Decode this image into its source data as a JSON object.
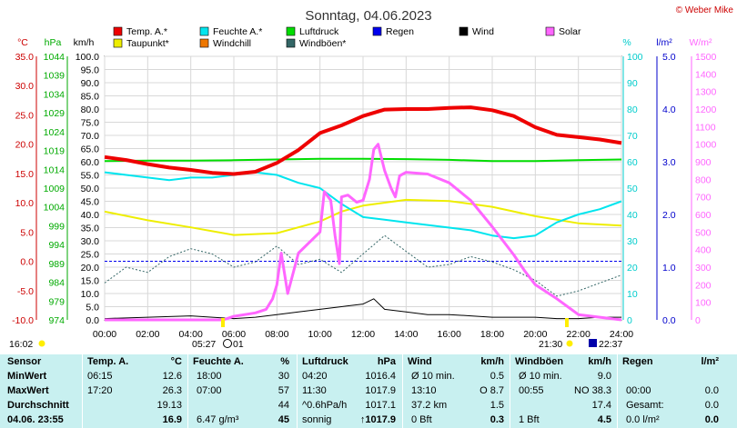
{
  "title": "Sonntag, 04.06.2023",
  "credit": "© Weber Mike",
  "colors": {
    "temp": "#ee0000",
    "feuchte": "#00e5ee",
    "luftdruck": "#00dd00",
    "regen": "#0000ee",
    "wind": "#000000",
    "solar": "#ff66ff",
    "taupunkt": "#eeee00",
    "windchill": "#ee7700",
    "windboeen": "#336666",
    "table_bg": "#c8f0f0"
  },
  "legend": [
    {
      "label": "Temp. A.*",
      "color": "#ee0000"
    },
    {
      "label": "Feuchte A.*",
      "color": "#00e5ee"
    },
    {
      "label": "Luftdruck",
      "color": "#00dd00"
    },
    {
      "label": "Regen",
      "color": "#0000ee"
    },
    {
      "label": "Wind",
      "color": "#000000"
    },
    {
      "label": "Solar",
      "color": "#ff66ff"
    },
    {
      "label": "Taupunkt*",
      "color": "#eeee00"
    },
    {
      "label": "Windchill",
      "color": "#ee7700"
    },
    {
      "label": "Windböen*",
      "color": "#336666"
    }
  ],
  "axis_units": {
    "temp": "°C",
    "pressure": "hPa",
    "wind": "km/h",
    "humidity": "%",
    "rain": "l/m²",
    "solar": "W/m²"
  },
  "axes": {
    "temp_ticks": [
      "35.0",
      "30.0",
      "25.0",
      "20.0",
      "15.0",
      "10.0",
      "5.0",
      "0.0",
      "-5.0",
      "-10.0"
    ],
    "pressure_ticks": [
      "1044",
      "1039",
      "1034",
      "1029",
      "1024",
      "1019",
      "1014",
      "1009",
      "1004",
      "999",
      "994",
      "989",
      "984",
      "979",
      "974"
    ],
    "wind_ticks": [
      "100.0",
      "95.0",
      "90.0",
      "85.0",
      "80.0",
      "75.0",
      "70.0",
      "65.0",
      "60.0",
      "55.0",
      "50.0",
      "45.0",
      "40.0",
      "35.0",
      "30.0",
      "25.0",
      "20.0",
      "15.0",
      "10.0",
      "5.0",
      "0.0"
    ],
    "humidity_ticks": [
      "100",
      "90",
      "80",
      "70",
      "60",
      "50",
      "40",
      "30",
      "20",
      "10",
      "0"
    ],
    "rain_ticks": [
      "5.0",
      "4.0",
      "3.0",
      "2.0",
      "1.0",
      "0.0"
    ],
    "solar_ticks": [
      "1500",
      "1400",
      "1300",
      "1200",
      "1100",
      "1000",
      "900",
      "800",
      "700",
      "600",
      "500",
      "400",
      "300",
      "200",
      "100",
      "0"
    ],
    "time_ticks": [
      "00:00",
      "02:00",
      "04:00",
      "06:00",
      "08:00",
      "10:00",
      "12:00",
      "14:00",
      "16:00",
      "18:00",
      "20:00",
      "22:00",
      "24:00"
    ]
  },
  "time_info": {
    "current": "16:02",
    "sunrise": "05:27",
    "moon": "01",
    "sunset": "21:30",
    "moonrise": "22:37"
  },
  "chart_data": {
    "type": "line",
    "x_unit": "h",
    "xlim": [
      0,
      24
    ],
    "series": [
      {
        "name": "Temp. A.*",
        "axis": "temp",
        "x": [
          0,
          1,
          2,
          3,
          4,
          5,
          6,
          7,
          8,
          9,
          10,
          11,
          12,
          13,
          14,
          15,
          16,
          17,
          18,
          19,
          20,
          21,
          22,
          23,
          24
        ],
        "values": [
          17.8,
          17.3,
          16.6,
          16.0,
          15.6,
          15.1,
          14.9,
          15.3,
          16.8,
          19.0,
          21.9,
          23.2,
          24.8,
          25.9,
          26.0,
          26.0,
          26.2,
          26.3,
          25.8,
          24.8,
          22.9,
          21.6,
          21.2,
          20.8,
          20.2
        ]
      },
      {
        "name": "Feuchte A.*",
        "axis": "humidity",
        "x": [
          0,
          1,
          2,
          3,
          4,
          5,
          6,
          7,
          8,
          9,
          10,
          11,
          12,
          13,
          14,
          15,
          16,
          17,
          18,
          19,
          20,
          21,
          22,
          23,
          24
        ],
        "values": [
          56,
          55,
          54,
          53,
          54,
          54,
          55,
          56,
          55,
          52,
          50,
          44,
          39,
          38,
          37,
          36,
          35,
          34,
          32,
          31,
          32,
          37,
          40,
          42,
          45
        ]
      },
      {
        "name": "Luftdruck",
        "axis": "pressure",
        "x": [
          0,
          2,
          4,
          6,
          8,
          10,
          12,
          14,
          16,
          18,
          20,
          22,
          24
        ],
        "values": [
          1016.2,
          1016.3,
          1016.3,
          1016.4,
          1016.6,
          1016.8,
          1016.8,
          1016.7,
          1016.5,
          1016.2,
          1016.2,
          1016.4,
          1016.6
        ]
      },
      {
        "name": "Taupunkt*",
        "axis": "temp",
        "x": [
          0,
          2,
          4,
          6,
          8,
          10,
          11,
          12,
          14,
          16,
          18,
          20,
          22,
          24
        ],
        "values": [
          8.5,
          7.0,
          5.8,
          4.5,
          4.8,
          6.8,
          8.5,
          9.5,
          10.5,
          10.3,
          9.3,
          7.7,
          6.5,
          6.1
        ]
      },
      {
        "name": "Solar",
        "axis": "solar",
        "x": [
          0,
          5.5,
          6,
          7,
          7.5,
          7.8,
          8,
          8.2,
          8.5,
          9,
          9.5,
          10,
          10.2,
          10.5,
          10.7,
          10.9,
          11,
          11.3,
          11.7,
          12,
          12.3,
          12.5,
          12.7,
          13,
          13.3,
          13.5,
          13.7,
          14,
          15,
          16,
          17,
          18,
          19,
          19.5,
          20,
          21,
          22,
          24
        ],
        "values": [
          0,
          0,
          20,
          40,
          60,
          120,
          200,
          380,
          150,
          380,
          440,
          500,
          730,
          680,
          480,
          320,
          700,
          710,
          670,
          680,
          800,
          970,
          1000,
          850,
          750,
          700,
          820,
          840,
          830,
          780,
          680,
          530,
          370,
          280,
          200,
          120,
          30,
          0
        ]
      },
      {
        "name": "Wind",
        "axis": "wind",
        "x": [
          0,
          2,
          4,
          6,
          7,
          8,
          9,
          10,
          11,
          12,
          12.5,
          13,
          14,
          15,
          16,
          17,
          18,
          19,
          20,
          21,
          22,
          23,
          24
        ],
        "values": [
          0.5,
          1,
          1.5,
          0.5,
          1,
          2,
          3,
          4,
          5,
          6,
          8,
          4,
          3,
          2,
          2,
          1.5,
          1,
          1,
          1,
          0.5,
          0.5,
          1,
          1
        ]
      },
      {
        "name": "Windböen*",
        "axis": "wind",
        "x": [
          0,
          1,
          2,
          3,
          4,
          5,
          6,
          7,
          8,
          9,
          10,
          11,
          12,
          13,
          14,
          15,
          16,
          17,
          18,
          19,
          20,
          21,
          22,
          23,
          24
        ],
        "values": [
          14,
          20,
          18,
          24,
          27,
          25,
          20,
          22,
          28,
          21,
          23,
          18,
          25,
          32,
          26,
          20,
          21,
          24,
          22,
          19,
          15,
          9,
          11,
          14,
          17
        ]
      }
    ],
    "reference_lines": [
      {
        "axis": "temp",
        "value": 0,
        "style": "dashed",
        "color": "#0000ee"
      }
    ]
  },
  "table": {
    "columns": [
      "Sensor",
      "Temp. A.",
      "°C",
      "Feuchte A.",
      "%",
      "Luftdruck",
      "hPa",
      "Wind",
      "km/h",
      "Windböen",
      "km/h",
      "Regen",
      "l/m²"
    ],
    "rows": [
      {
        "label": "MinWert",
        "temp_time": "06:15",
        "temp": "12.6",
        "hum_time": "18:00",
        "hum": "30",
        "press_time": "04:20",
        "press": "1016.4",
        "wind_desc": "Ø 10 min.",
        "wind": "0.5",
        "gust_desc": "Ø 10 min.",
        "gust": "9.0",
        "rain_desc": "",
        "rain": ""
      },
      {
        "label": "MaxWert",
        "temp_time": "17:20",
        "temp": "26.3",
        "hum_time": "07:00",
        "hum": "57",
        "press_time": "11:30",
        "press": "1017.9",
        "wind_desc": "13:10",
        "wind_dir": "O 8.7",
        "gust_desc": "00:55",
        "gust": "NO 38.3",
        "rain_desc": "00:00",
        "rain": "0.0"
      },
      {
        "label": "Durchschnitt",
        "temp_time": "",
        "temp": "19.13",
        "hum_time": "",
        "hum": "44",
        "press_time": "^0.6hPa/h",
        "press": "1017.1",
        "wind_desc": "37.2 km",
        "wind": "1.5",
        "gust_desc": "",
        "gust": "17.4",
        "rain_desc": "Gesamt:",
        "rain": "0.0"
      },
      {
        "label": "04.06. 23:55",
        "temp_time": "",
        "temp": "16.9",
        "hum_time": "6.47 g/m³",
        "hum": "45",
        "press_time": "sonnig",
        "press": "↑1017.9",
        "wind_desc": "0 Bft",
        "wind": "0.3",
        "gust_desc": "1 Bft",
        "gust": "4.5",
        "rain_desc": "0.0 l/m²",
        "rain": "0.0"
      }
    ]
  }
}
